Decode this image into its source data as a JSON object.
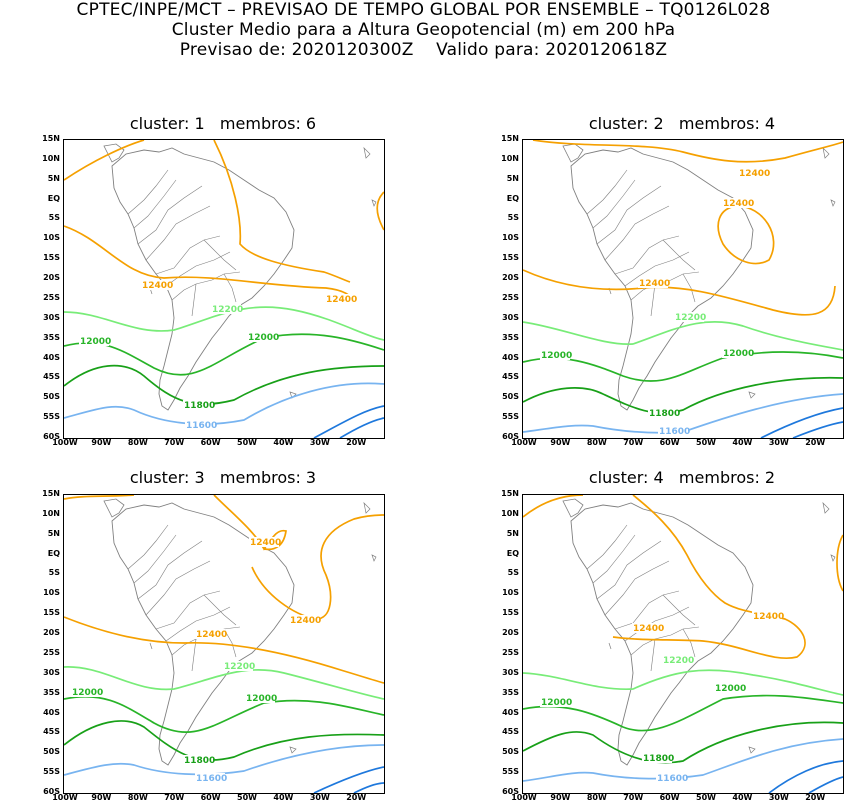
{
  "header": {
    "line1": "CPTEC/INPE/MCT – PREVISAO DE TEMPO GLOBAL POR ENSEMBLE – TQ0126L028",
    "line2": "Cluster Medio para a Altura Geopotencial (m) em 200 hPa",
    "line3": "Previsao de: 2020120300Z    Valido para: 2020120618Z"
  },
  "axes": {
    "lat_labels": [
      "15N",
      "10N",
      "5N",
      "EQ",
      "5S",
      "10S",
      "15S",
      "20S",
      "25S",
      "30S",
      "35S",
      "40S",
      "45S",
      "50S",
      "55S",
      "60S"
    ],
    "lon_labels": [
      "100W",
      "90W",
      "80W",
      "70W",
      "60W",
      "50W",
      "40W",
      "30W",
      "20W"
    ]
  },
  "colors": {
    "c12400": "#f5a000",
    "c12200": "#78ec78",
    "c12000": "#28b428",
    "c11800": "#18a018",
    "c11600": "#78b4f0",
    "c11400": "#1e78dc",
    "coast": "#808080"
  },
  "panels": [
    {
      "title": "cluster: 1   membros: 6",
      "labels": {
        "l12400a": "12400",
        "l12400b": "12400",
        "l12200": "12200",
        "l12000a": "12000",
        "l12000b": "12000",
        "l11800": "11800",
        "l11600": "11600"
      }
    },
    {
      "title": "cluster: 2   membros: 4",
      "labels": {
        "l12400a": "12400",
        "l12400b": "12400",
        "l12400c": "12400",
        "l12200": "12200",
        "l12000a": "12000",
        "l12000b": "12000",
        "l11800": "11800",
        "l11600": "11600"
      }
    },
    {
      "title": "cluster: 3   membros: 3",
      "labels": {
        "l12400a": "12400",
        "l12400b": "12400",
        "l12400c": "12400",
        "l12200": "12200",
        "l12000a": "12000",
        "l12000b": "12000",
        "l11800": "11800",
        "l11600": "11600"
      }
    },
    {
      "title": "cluster: 4   membros: 2",
      "labels": {
        "l12400a": "12400",
        "l12400b": "12400",
        "l12200": "12200",
        "l12000a": "12000",
        "l12000b": "12000",
        "l11800": "11800",
        "l11600": "11600"
      }
    }
  ]
}
